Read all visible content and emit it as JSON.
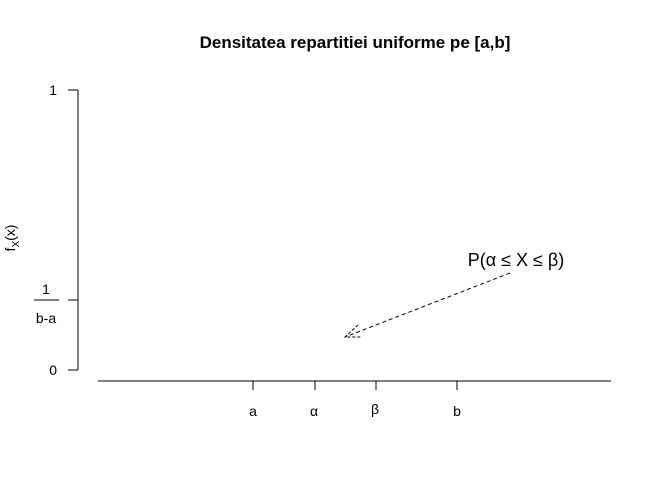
{
  "chart_data": {
    "type": "line",
    "title": "Densitatea repartitiei uniforme pe [a,b]",
    "ylabel": "f_X(x)",
    "ylabel_main": "f",
    "ylabel_sub": "X",
    "ylabel_tail": "(x)",
    "x_ticks": [
      "a",
      "α",
      "β",
      "b"
    ],
    "y_ticks": [
      {
        "value": 0,
        "label": "0"
      },
      {
        "value": 0.25,
        "label_numerator": "1",
        "label_denominator": "b-a"
      },
      {
        "value": 1,
        "label": "1"
      }
    ],
    "ylim": [
      0,
      1
    ],
    "annotation": {
      "text": "P(α ≤ X ≤ β)",
      "arrow": "dashed"
    },
    "grid": false,
    "series": []
  }
}
